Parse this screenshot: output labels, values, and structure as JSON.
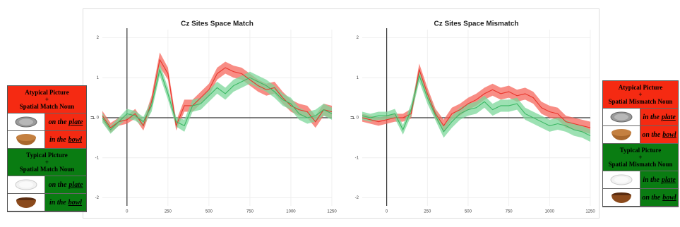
{
  "chart_data": [
    {
      "type": "line",
      "title": "Cz Sites Space Match",
      "ylabel": "μ",
      "x": [
        -150,
        -100,
        -50,
        0,
        50,
        100,
        150,
        200,
        250,
        300,
        350,
        400,
        450,
        500,
        550,
        600,
        650,
        700,
        750,
        800,
        850,
        900,
        950,
        1000,
        1050,
        1100,
        1150,
        1200,
        1250
      ],
      "xlim": [
        -150,
        1250
      ],
      "xticks": [
        0,
        250,
        500,
        750,
        1000,
        1250
      ],
      "ylim": [
        -2.2,
        2.2
      ],
      "yticks": [
        -2,
        -1,
        0,
        1,
        2
      ],
      "grid": true,
      "series": [
        {
          "color": "#e8352b",
          "band_color": "#f5675c",
          "values": [
            0.05,
            -0.25,
            -0.1,
            -0.05,
            0.1,
            -0.2,
            0.4,
            1.45,
            1.1,
            -0.2,
            0.3,
            0.3,
            0.5,
            0.7,
            1.1,
            1.25,
            1.15,
            1.1,
            0.95,
            0.8,
            0.7,
            0.75,
            0.5,
            0.3,
            0.2,
            0.15,
            -0.1,
            0.2,
            0.15
          ],
          "ci": [
            0.12,
            0.12,
            0.1,
            0.1,
            0.12,
            0.12,
            0.15,
            0.18,
            0.15,
            0.12,
            0.15,
            0.15,
            0.15,
            0.15,
            0.15,
            0.15,
            0.15,
            0.15,
            0.15,
            0.15,
            0.15,
            0.15,
            0.15,
            0.15,
            0.15,
            0.15,
            0.15,
            0.15,
            0.15
          ]
        },
        {
          "color": "#3cb864",
          "band_color": "#7cd79a",
          "values": [
            0,
            -0.3,
            -0.1,
            0.1,
            0.05,
            -0.1,
            0.3,
            1.2,
            0.6,
            -0.1,
            -0.2,
            0.3,
            0.35,
            0.55,
            0.75,
            0.6,
            0.8,
            0.9,
            1.0,
            0.9,
            0.8,
            0.65,
            0.45,
            0.35,
            0.1,
            0,
            0.05,
            0.2,
            0.1
          ],
          "ci": [
            0.12,
            0.1,
            0.1,
            0.12,
            0.12,
            0.12,
            0.15,
            0.15,
            0.15,
            0.12,
            0.15,
            0.15,
            0.15,
            0.15,
            0.15,
            0.15,
            0.15,
            0.15,
            0.15,
            0.15,
            0.15,
            0.15,
            0.15,
            0.15,
            0.15,
            0.15,
            0.15,
            0.15,
            0.15
          ]
        }
      ]
    },
    {
      "type": "line",
      "title": "Cz Sites Space Mismatch",
      "ylabel": "μ",
      "x": [
        -150,
        -100,
        -50,
        0,
        50,
        100,
        150,
        200,
        250,
        300,
        350,
        400,
        450,
        500,
        550,
        600,
        650,
        700,
        750,
        800,
        850,
        900,
        950,
        1000,
        1050,
        1100,
        1150,
        1200,
        1250
      ],
      "xlim": [
        -150,
        1250
      ],
      "xticks": [
        0,
        250,
        500,
        750,
        1000,
        1250
      ],
      "ylim": [
        -2.2,
        2.2
      ],
      "yticks": [
        -2,
        -1,
        0,
        1,
        2
      ],
      "grid": true,
      "series": [
        {
          "color": "#e8352b",
          "band_color": "#f5675c",
          "values": [
            0,
            -0.05,
            -0.1,
            -0.05,
            0,
            0,
            0.1,
            1.2,
            0.6,
            0.1,
            -0.2,
            0.1,
            0.2,
            0.35,
            0.45,
            0.6,
            0.7,
            0.6,
            0.65,
            0.55,
            0.6,
            0.5,
            0.25,
            0.15,
            0.1,
            -0.1,
            -0.15,
            -0.2,
            -0.25
          ],
          "ci": [
            0.1,
            0.1,
            0.1,
            0.1,
            0.1,
            0.1,
            0.12,
            0.15,
            0.15,
            0.12,
            0.15,
            0.15,
            0.15,
            0.15,
            0.15,
            0.15,
            0.15,
            0.15,
            0.15,
            0.15,
            0.15,
            0.15,
            0.15,
            0.15,
            0.15,
            0.15,
            0.15,
            0.15,
            0.15
          ]
        },
        {
          "color": "#3cb864",
          "band_color": "#7cd79a",
          "values": [
            0.05,
            0,
            0.05,
            0.05,
            0.1,
            -0.3,
            0.2,
            1.05,
            0.5,
            0.05,
            -0.35,
            -0.1,
            0.1,
            0.2,
            0.25,
            0.4,
            0.2,
            0.3,
            0.3,
            0.35,
            0.1,
            0,
            -0.1,
            -0.2,
            -0.15,
            -0.2,
            -0.3,
            -0.35,
            -0.45
          ],
          "ci": [
            0.1,
            0.1,
            0.1,
            0.1,
            0.12,
            0.12,
            0.15,
            0.15,
            0.15,
            0.12,
            0.15,
            0.15,
            0.15,
            0.15,
            0.15,
            0.15,
            0.15,
            0.15,
            0.15,
            0.15,
            0.15,
            0.15,
            0.15,
            0.15,
            0.15,
            0.15,
            0.15,
            0.15,
            0.15
          ]
        }
      ]
    }
  ],
  "side_panels": [
    {
      "groups": [
        {
          "color": "#f52a12",
          "title": [
            "Atypical Picture",
            "+",
            "Spatial Match Noun"
          ],
          "rows": [
            {
              "prep": "on the",
              "noun": "plate"
            },
            {
              "prep": "in the",
              "noun": "bowl"
            }
          ]
        },
        {
          "color": "#0a7c12",
          "title": [
            "Typical Picture",
            "+",
            "Spatial Match Noun"
          ],
          "rows": [
            {
              "prep": "on the",
              "noun": "plate"
            },
            {
              "prep": "in the",
              "noun": "bowl"
            }
          ]
        }
      ]
    },
    {
      "groups": [
        {
          "color": "#f52a12",
          "title": [
            "Atypical Picture",
            "+",
            "Spatial Mismatch Noun"
          ],
          "rows": [
            {
              "prep": "in the",
              "noun": "plate"
            },
            {
              "prep": "on the",
              "noun": "bowl"
            }
          ]
        },
        {
          "color": "#0a7c12",
          "title": [
            "Typical Picture",
            "+",
            "Spatial Mismatch Noun"
          ],
          "rows": [
            {
              "prep": "in the",
              "noun": "plate"
            },
            {
              "prep": "on the",
              "noun": "bowl"
            }
          ]
        }
      ]
    }
  ]
}
